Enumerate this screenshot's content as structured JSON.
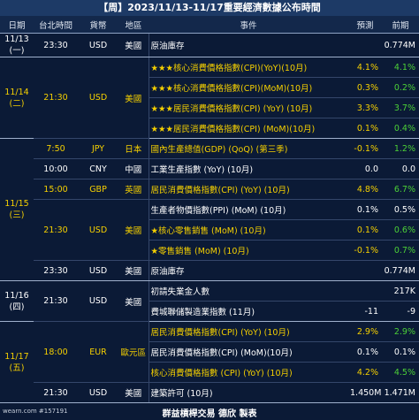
{
  "title": "【周】2023/11/13-11/17重要經濟數據公布時間",
  "headers": [
    "日期",
    "台北時間",
    "貨幣",
    "地區",
    "事件",
    "預測",
    "前期"
  ],
  "days": [
    {
      "date": "11/13",
      "weekday": "(一)",
      "color": "#ffffff",
      "slots": [
        {
          "time": "23:30",
          "currency": "USD",
          "region": "美國",
          "color": "#ffffff",
          "events": [
            {
              "event": "原油庫存",
              "forecast": null,
              "previous": "0.774M",
              "color": "#ffffff",
              "previous_color": "#ffffff"
            }
          ]
        }
      ]
    },
    {
      "date": "11/14",
      "weekday": "(二)",
      "color": "#f5d000",
      "slots": [
        {
          "time": "21:30",
          "currency": "USD",
          "region": "美國",
          "color": "#f5d000",
          "events": [
            {
              "event": "★★★核心消費價格指數(CPI)(YoY)(10月)",
              "forecast": "4.1%",
              "previous": "4.1%",
              "color": "#f5d000",
              "previous_color": "#4cd137"
            },
            {
              "event": "★★★核心消費價格指數(CPI)(MoM)(10月)",
              "forecast": "0.3%",
              "previous": "0.2%",
              "color": "#f5d000",
              "previous_color": "#4cd137"
            },
            {
              "event": "★★★居民消費價格指數(CPI) (YoY) (10月)",
              "forecast": "3.3%",
              "previous": "3.7%",
              "color": "#f5d000",
              "previous_color": "#4cd137"
            },
            {
              "event": "★★★居民消費價格指數(CPI) (MoM)(10月)",
              "forecast": "0.1%",
              "previous": "0.4%",
              "color": "#f5d000",
              "previous_color": "#4cd137"
            }
          ]
        }
      ]
    },
    {
      "date": "11/15",
      "weekday": "(三)",
      "color": "#f5d000",
      "slots": [
        {
          "time": "7:50",
          "currency": "JPY",
          "region": "日本",
          "color": "#f5d000",
          "events": [
            {
              "event": "國內生產總值(GDP) (QoQ) (第三季)",
              "forecast": "-0.1%",
              "previous": "1.2%",
              "color": "#f5d000",
              "previous_color": "#4cd137"
            }
          ]
        },
        {
          "time": "10:00",
          "currency": "CNY",
          "region": "中國",
          "color": "#ffffff",
          "events": [
            {
              "event": "工業生產指數 (YoY) (10月)",
              "forecast": "0.0",
              "previous": "0.0",
              "color": "#ffffff",
              "previous_color": "#ffffff"
            }
          ]
        },
        {
          "time": "15:00",
          "currency": "GBP",
          "region": "英國",
          "color": "#f5d000",
          "events": [
            {
              "event": "居民消費價格指數(CPI) (YoY) (10月)",
              "forecast": "4.8%",
              "previous": "6.7%",
              "color": "#f5d000",
              "previous_color": "#4cd137"
            }
          ]
        },
        {
          "time": "21:30",
          "currency": "USD",
          "region": "美國",
          "color": "#f5d000",
          "events": [
            {
              "event": "生產者物價指數(PPI) (MoM) (10月)",
              "forecast": "0.1%",
              "previous": "0.5%",
              "color": "#ffffff",
              "previous_color": "#ffffff"
            },
            {
              "event": "★核心零售銷售 (MoM) (10月)",
              "forecast": "0.1%",
              "previous": "0.6%",
              "color": "#f5d000",
              "previous_color": "#4cd137"
            },
            {
              "event": "★零售銷售 (MoM) (10月)",
              "forecast": "-0.1%",
              "previous": "0.7%",
              "color": "#f5d000",
              "previous_color": "#4cd137"
            }
          ]
        },
        {
          "time": "23:30",
          "currency": "USD",
          "region": "美國",
          "color": "#ffffff",
          "events": [
            {
              "event": "原油庫存",
              "forecast": null,
              "previous": "0.774M",
              "color": "#ffffff",
              "previous_color": "#ffffff"
            }
          ]
        }
      ]
    },
    {
      "date": "11/16",
      "weekday": "(四)",
      "color": "#ffffff",
      "slots": [
        {
          "time": "21:30",
          "currency": "USD",
          "region": "美國",
          "color": "#ffffff",
          "events": [
            {
              "event": "初請失業金人數",
              "forecast": null,
              "previous": "217K",
              "color": "#ffffff",
              "previous_color": "#ffffff"
            },
            {
              "event": "費城聯儲製造業指數 (11月)",
              "forecast": "-11",
              "previous": "-9",
              "color": "#ffffff",
              "previous_color": "#ffffff"
            }
          ]
        }
      ]
    },
    {
      "date": "11/17",
      "weekday": "(五)",
      "color": "#f5d000",
      "slots": [
        {
          "time": "18:00",
          "currency": "EUR",
          "region": "歐元區",
          "color": "#f5d000",
          "events": [
            {
              "event": "居民消費價格指數(CPI) (YoY) (10月)",
              "forecast": "2.9%",
              "previous": "2.9%",
              "color": "#f5d000",
              "previous_color": "#4cd137"
            },
            {
              "event": "居民消費價格指數(CPI) (MoM)(10月)",
              "forecast": "0.1%",
              "previous": "0.1%",
              "color": "#ffffff",
              "previous_color": "#ffffff"
            },
            {
              "event": "核心消費價格指數 (CPI) (YoY) (10月)",
              "forecast": "4.2%",
              "previous": "4.5%",
              "color": "#f5d000",
              "previous_color": "#4cd137"
            }
          ]
        },
        {
          "time": "21:30",
          "currency": "USD",
          "region": "美國",
          "color": "#ffffff",
          "events": [
            {
              "event": "建築許可 (10月)",
              "forecast": "1.450M",
              "previous": "1.471M",
              "color": "#ffffff",
              "previous_color": "#ffffff"
            }
          ]
        }
      ]
    }
  ],
  "footer": {
    "source": "wearn.com #157191",
    "credit": "群益槓桿交易 德欣 製表"
  }
}
